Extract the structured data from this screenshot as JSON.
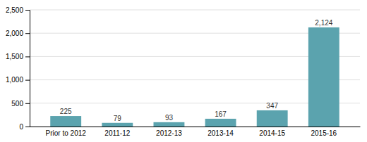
{
  "chart_data": {
    "type": "bar",
    "categories": [
      "Prior to 2012",
      "2011-12",
      "2012-13",
      "2013-14",
      "2014-15",
      "2015-16"
    ],
    "values": [
      225,
      79,
      93,
      167,
      347,
      2124
    ],
    "value_labels": [
      "225",
      "79",
      "93",
      "167",
      "347",
      "2,124"
    ],
    "data_labels": true,
    "color": "#5ba3ae",
    "ylim": [
      0,
      2500
    ],
    "yticks": [
      0,
      500,
      {
        "value": 1000,
        "label": "1,000"
      },
      {
        "value": 1500,
        "label": "1,500"
      },
      {
        "value": 2000,
        "label": "2,000"
      },
      {
        "value": 2500,
        "label": "2,500"
      }
    ],
    "grid": true
  }
}
